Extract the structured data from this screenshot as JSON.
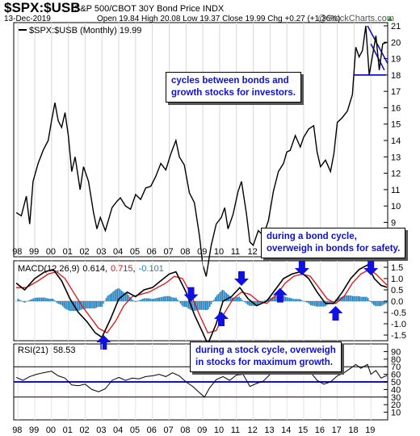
{
  "header": {
    "symbol": "$SPX:$USB",
    "description": "S&P 500/CBOT 30Y Bond Price INDX",
    "date": "13-Dec-2019",
    "quote": "Open 19.84  High 20.08  Low 19.37  Close 19.99  Chg +0.27 (+1.36%)",
    "quote_arrow": "▲",
    "logo": "@StockCharts.com"
  },
  "annotations": {
    "top": [
      "cycles between bonds and",
      "growth stocks for investors."
    ],
    "bond": [
      "during a bond cycle,",
      "overweigh in bonds for safety."
    ],
    "stock": [
      "during a stock cycle, overweigh",
      "in stocks for maximum growth."
    ]
  },
  "colors": {
    "price": "#000000",
    "signal": "#e01010",
    "histogram": "#1f7fbf",
    "annotation_text": "#1010d0",
    "arrow": "#1010e0",
    "trendline": "#1010d0"
  },
  "chart_data": [
    {
      "type": "line",
      "title": "$SPX:$USB (Monthly) 19.99",
      "series": [
        {
          "name": "$SPX:$USB (Monthly)",
          "values_by_year": [
            [
              1997.9,
              9.6
            ],
            [
              1998.2,
              9.4
            ],
            [
              1998.5,
              10.6
            ],
            [
              1998.7,
              8.9
            ],
            [
              1998.9,
              11.5
            ],
            [
              1999.2,
              12.6
            ],
            [
              1999.5,
              13.4
            ],
            [
              1999.8,
              14.0
            ],
            [
              2000.0,
              15.2
            ],
            [
              2000.2,
              16.3
            ],
            [
              2000.4,
              15.2
            ],
            [
              2000.6,
              14.8
            ],
            [
              2000.8,
              15.7
            ],
            [
              2001.0,
              14.3
            ],
            [
              2001.2,
              12.1
            ],
            [
              2001.4,
              13.0
            ],
            [
              2001.7,
              11.0
            ],
            [
              2001.9,
              12.4
            ],
            [
              2002.2,
              11.5
            ],
            [
              2002.5,
              9.6
            ],
            [
              2002.7,
              8.6
            ],
            [
              2002.9,
              9.3
            ],
            [
              2003.2,
              8.5
            ],
            [
              2003.4,
              9.2
            ],
            [
              2003.6,
              9.9
            ],
            [
              2003.9,
              10.3
            ],
            [
              2004.1,
              10.5
            ],
            [
              2004.4,
              10.0
            ],
            [
              2004.7,
              9.8
            ],
            [
              2005.0,
              10.7
            ],
            [
              2005.3,
              10.4
            ],
            [
              2005.6,
              11.1
            ],
            [
              2005.9,
              11.2
            ],
            [
              2006.2,
              11.8
            ],
            [
              2006.5,
              12.6
            ],
            [
              2006.8,
              12.2
            ],
            [
              2007.1,
              13.2
            ],
            [
              2007.4,
              14.0
            ],
            [
              2007.6,
              13.0
            ],
            [
              2007.9,
              12.5
            ],
            [
              2008.2,
              10.8
            ],
            [
              2008.5,
              10.2
            ],
            [
              2008.8,
              8.2
            ],
            [
              2009.0,
              6.4
            ],
            [
              2009.2,
              5.7
            ],
            [
              2009.5,
              7.6
            ],
            [
              2009.8,
              8.9
            ],
            [
              2010.1,
              9.3
            ],
            [
              2010.3,
              9.9
            ],
            [
              2010.5,
              8.6
            ],
            [
              2010.8,
              9.5
            ],
            [
              2011.1,
              10.9
            ],
            [
              2011.3,
              11.5
            ],
            [
              2011.6,
              9.5
            ],
            [
              2011.8,
              7.8
            ],
            [
              2012.0,
              7.6
            ],
            [
              2012.3,
              8.5
            ],
            [
              2012.6,
              8.2
            ],
            [
              2012.9,
              9.1
            ],
            [
              2013.2,
              10.9
            ],
            [
              2013.5,
              12.1
            ],
            [
              2013.8,
              12.6
            ],
            [
              2014.0,
              13.3
            ],
            [
              2014.2,
              13.4
            ],
            [
              2014.5,
              14.3
            ],
            [
              2014.8,
              13.6
            ],
            [
              2015.0,
              14.2
            ],
            [
              2015.3,
              14.7
            ],
            [
              2015.6,
              14.9
            ],
            [
              2015.8,
              13.3
            ],
            [
              2016.0,
              12.4
            ],
            [
              2016.3,
              12.8
            ],
            [
              2016.6,
              12.1
            ],
            [
              2016.8,
              13.2
            ],
            [
              2017.0,
              15.1
            ],
            [
              2017.3,
              15.4
            ],
            [
              2017.6,
              15.8
            ],
            [
              2017.9,
              16.8
            ],
            [
              2018.1,
              19.7
            ],
            [
              2018.3,
              19.1
            ],
            [
              2018.5,
              19.5
            ],
            [
              2018.7,
              21.0
            ],
            [
              2018.9,
              18.0
            ],
            [
              2019.1,
              19.2
            ],
            [
              2019.3,
              20.4
            ],
            [
              2019.5,
              18.3
            ],
            [
              2019.7,
              19.9
            ],
            [
              2019.95,
              19.99
            ]
          ]
        }
      ],
      "ylim": [
        7,
        21
      ],
      "y_ticks": [
        8,
        9,
        10,
        11,
        12,
        13,
        14,
        15,
        16,
        17,
        18,
        19,
        20,
        21
      ],
      "x_labels": [
        "98",
        "99",
        "00",
        "01",
        "02",
        "03",
        "04",
        "05",
        "06",
        "07",
        "08",
        "09",
        "10",
        "11",
        "12",
        "13",
        "14",
        "15",
        "16",
        "17",
        "18",
        "19"
      ]
    },
    {
      "type": "line",
      "title": "MACD(12,26,9)",
      "legend_values": {
        "macd": "0.614",
        "signal": "0.715",
        "histogram": "-0.101"
      },
      "series": [
        {
          "name": "MACD",
          "values_by_year": [
            [
              1997.9,
              0.8
            ],
            [
              1998.4,
              0.5
            ],
            [
              1999.0,
              1.0
            ],
            [
              1999.6,
              1.3
            ],
            [
              2000.1,
              1.4
            ],
            [
              2000.6,
              0.9
            ],
            [
              2001.1,
              0.1
            ],
            [
              2001.6,
              -0.5
            ],
            [
              2002.1,
              -0.9
            ],
            [
              2002.6,
              -1.4
            ],
            [
              2003.0,
              -1.6
            ],
            [
              2003.5,
              -0.8
            ],
            [
              2004.0,
              0.1
            ],
            [
              2004.5,
              0.4
            ],
            [
              2005.0,
              0.2
            ],
            [
              2005.5,
              0.5
            ],
            [
              2006.0,
              0.6
            ],
            [
              2006.5,
              0.9
            ],
            [
              2007.0,
              1.2
            ],
            [
              2007.4,
              1.3
            ],
            [
              2008.0,
              0.4
            ],
            [
              2008.5,
              -0.6
            ],
            [
              2009.0,
              -1.4
            ],
            [
              2009.3,
              -1.9
            ],
            [
              2009.8,
              -1.0
            ],
            [
              2010.2,
              0.0
            ],
            [
              2010.7,
              0.2
            ],
            [
              2011.2,
              0.6
            ],
            [
              2011.7,
              0.1
            ],
            [
              2012.2,
              -0.2
            ],
            [
              2012.8,
              0.0
            ],
            [
              2013.3,
              0.5
            ],
            [
              2013.8,
              1.0
            ],
            [
              2014.3,
              1.2
            ],
            [
              2014.8,
              1.3
            ],
            [
              2015.3,
              1.0
            ],
            [
              2015.8,
              0.4
            ],
            [
              2016.3,
              -0.1
            ],
            [
              2016.8,
              -0.1
            ],
            [
              2017.3,
              0.4
            ],
            [
              2017.8,
              1.0
            ],
            [
              2018.3,
              1.4
            ],
            [
              2018.8,
              1.6
            ],
            [
              2019.2,
              1.0
            ],
            [
              2019.6,
              0.7
            ],
            [
              2019.95,
              0.614
            ]
          ]
        },
        {
          "name": "Signal",
          "values_by_year": [
            [
              1997.9,
              0.6
            ],
            [
              1998.5,
              0.6
            ],
            [
              1999.2,
              0.9
            ],
            [
              1999.8,
              1.2
            ],
            [
              2000.3,
              1.3
            ],
            [
              2000.8,
              1.0
            ],
            [
              2001.3,
              0.4
            ],
            [
              2001.8,
              -0.2
            ],
            [
              2002.3,
              -0.7
            ],
            [
              2002.8,
              -1.2
            ],
            [
              2003.3,
              -1.4
            ],
            [
              2003.8,
              -0.9
            ],
            [
              2004.3,
              -0.2
            ],
            [
              2004.8,
              0.2
            ],
            [
              2005.3,
              0.3
            ],
            [
              2005.8,
              0.4
            ],
            [
              2006.3,
              0.6
            ],
            [
              2006.8,
              0.8
            ],
            [
              2007.3,
              1.1
            ],
            [
              2007.8,
              1.0
            ],
            [
              2008.3,
              0.3
            ],
            [
              2008.8,
              -0.6
            ],
            [
              2009.3,
              -1.4
            ],
            [
              2009.8,
              -1.3
            ],
            [
              2010.3,
              -0.5
            ],
            [
              2010.8,
              0.1
            ],
            [
              2011.3,
              0.4
            ],
            [
              2011.8,
              0.3
            ],
            [
              2012.3,
              0.0
            ],
            [
              2012.8,
              -0.1
            ],
            [
              2013.4,
              0.3
            ],
            [
              2013.9,
              0.8
            ],
            [
              2014.4,
              1.1
            ],
            [
              2014.9,
              1.2
            ],
            [
              2015.4,
              1.1
            ],
            [
              2015.9,
              0.6
            ],
            [
              2016.4,
              0.1
            ],
            [
              2016.9,
              -0.1
            ],
            [
              2017.4,
              0.2
            ],
            [
              2017.9,
              0.8
            ],
            [
              2018.4,
              1.2
            ],
            [
              2018.9,
              1.4
            ],
            [
              2019.3,
              1.2
            ],
            [
              2019.7,
              0.9
            ],
            [
              2019.95,
              0.715
            ]
          ]
        }
      ],
      "ylim": [
        -1.5,
        1.5
      ],
      "y_tick_labels": [
        "1.5",
        "1.0",
        "0.5",
        "0.0",
        "-0.5",
        "-1.0",
        "-1.5"
      ],
      "y_ticks": [
        1.5,
        1.0,
        0.5,
        0.0,
        -0.5,
        -1.0,
        -1.5
      ],
      "arrows_down_years": [
        2008.3,
        2011.3,
        2014.9,
        2019.0
      ],
      "arrows_up_years": [
        2003.1,
        2010.1,
        2013.6,
        2016.9
      ]
    },
    {
      "type": "line",
      "title": "RSI(21)",
      "legend_value": "58.53",
      "series": [
        {
          "name": "RSI(21)",
          "values_by_year": [
            [
              1997.9,
              56
            ],
            [
              1998.3,
              52
            ],
            [
              1998.7,
              57
            ],
            [
              1999.1,
              60
            ],
            [
              1999.5,
              62
            ],
            [
              2000.0,
              64
            ],
            [
              2000.4,
              58
            ],
            [
              2000.8,
              55
            ],
            [
              2001.2,
              46
            ],
            [
              2001.6,
              45
            ],
            [
              2002.0,
              47
            ],
            [
              2002.4,
              40
            ],
            [
              2002.8,
              37
            ],
            [
              2003.2,
              41
            ],
            [
              2003.6,
              52
            ],
            [
              2004.0,
              56
            ],
            [
              2004.4,
              52
            ],
            [
              2004.8,
              55
            ],
            [
              2005.2,
              54
            ],
            [
              2005.6,
              57
            ],
            [
              2006.0,
              58
            ],
            [
              2006.4,
              60
            ],
            [
              2006.8,
              57
            ],
            [
              2007.2,
              62
            ],
            [
              2007.6,
              58
            ],
            [
              2008.0,
              50
            ],
            [
              2008.4,
              44
            ],
            [
              2008.8,
              36
            ],
            [
              2009.1,
              30
            ],
            [
              2009.4,
              42
            ],
            [
              2009.8,
              53
            ],
            [
              2010.2,
              57
            ],
            [
              2010.6,
              52
            ],
            [
              2011.0,
              59
            ],
            [
              2011.4,
              60
            ],
            [
              2011.8,
              44
            ],
            [
              2012.2,
              48
            ],
            [
              2012.6,
              51
            ],
            [
              2013.0,
              60
            ],
            [
              2013.4,
              66
            ],
            [
              2013.8,
              63
            ],
            [
              2014.2,
              66
            ],
            [
              2014.6,
              63
            ],
            [
              2015.0,
              66
            ],
            [
              2015.4,
              63
            ],
            [
              2015.8,
              52
            ],
            [
              2016.2,
              47
            ],
            [
              2016.6,
              50
            ],
            [
              2017.0,
              58
            ],
            [
              2017.4,
              62
            ],
            [
              2017.8,
              68
            ],
            [
              2018.1,
              73
            ],
            [
              2018.4,
              68
            ],
            [
              2018.8,
              73
            ],
            [
              2019.0,
              60
            ],
            [
              2019.3,
              65
            ],
            [
              2019.6,
              55
            ],
            [
              2019.95,
              58.53
            ]
          ]
        }
      ],
      "ylim": [
        0,
        100
      ],
      "y_ticks": [
        10,
        20,
        30,
        40,
        50,
        60,
        70,
        80,
        90
      ],
      "ref_lines": [
        70,
        50,
        30
      ],
      "x_labels": [
        "98",
        "99",
        "00",
        "01",
        "02",
        "03",
        "04",
        "05",
        "06",
        "07",
        "08",
        "09",
        "10",
        "11",
        "12",
        "13",
        "14",
        "15",
        "16",
        "17",
        "18",
        "19"
      ]
    }
  ]
}
